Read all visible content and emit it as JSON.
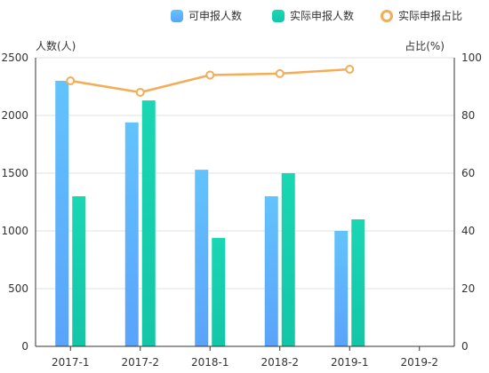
{
  "chart_data": {
    "type": "bar",
    "categories": [
      "2017-1",
      "2017-2",
      "2018-1",
      "2018-2",
      "2019-1",
      "2019-2"
    ],
    "series": [
      {
        "name": "可申报人数",
        "type": "bar",
        "axis": "left",
        "values": [
          2300,
          1940,
          1530,
          1300,
          1000,
          null
        ],
        "color": "#5aa3fb",
        "color_light": "#63c3fc"
      },
      {
        "name": "实际申报人数",
        "type": "bar",
        "axis": "left",
        "values": [
          1300,
          2130,
          940,
          1500,
          1100,
          null
        ],
        "color": "#13c6a7",
        "color_light": "#1ad6b3"
      },
      {
        "name": "实际申报占比",
        "type": "line",
        "axis": "right",
        "values": [
          92,
          88,
          94,
          94.5,
          96,
          null
        ],
        "color": "#f4ac57"
      }
    ],
    "ylabel": "人数(人)",
    "y2label": "占比(%)",
    "ylim": [
      0,
      2500
    ],
    "y2lim": [
      0,
      100
    ],
    "yticks": [
      "0",
      "500",
      "1000",
      "1500",
      "2000",
      "2500"
    ],
    "y2ticks": [
      "0",
      "20",
      "40",
      "60",
      "80",
      "100"
    ],
    "grid": true,
    "legend_position": "top-right"
  }
}
